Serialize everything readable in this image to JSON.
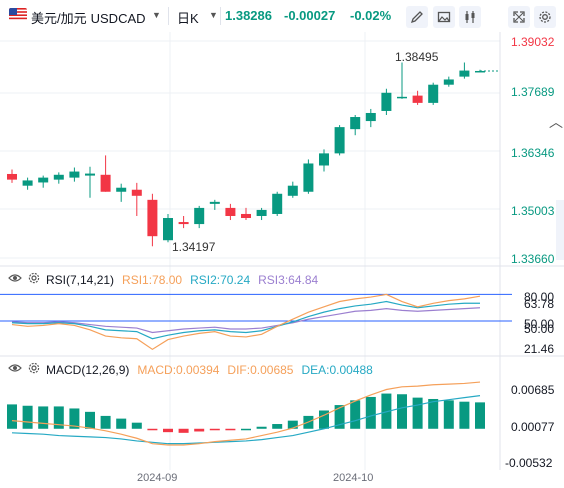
{
  "symbol": {
    "name": "美元/加元",
    "code": "USDCAD",
    "timeframe": "日K"
  },
  "quote": {
    "last": "1.38286",
    "change": "-0.00027",
    "change_pct": "-0.02%"
  },
  "toolbar_icons": [
    "edit-icon",
    "image-icon",
    "chart-style-icon",
    "fullscreen-icon",
    "settings-icon"
  ],
  "colors": {
    "up": "#089981",
    "down": "#f23645",
    "rsi1": "#f5a05a",
    "rsi2": "#26a9c4",
    "rsi3": "#9b7fd0",
    "macd": "#f5a05a",
    "dif": "#f5a05a",
    "dea": "#26a9c4"
  },
  "price_axis": [
    "1.39032",
    "1.37689",
    "1.36346",
    "1.35003",
    "1.33660"
  ],
  "price_labels": {
    "high": "1.38495",
    "low": "1.34197"
  },
  "rsi": {
    "label": "RSI(7,14,21)",
    "rsi1_label": "RSI1:78.00",
    "rsi2_label": "RSI2:70.24",
    "rsi3_label": "RSI3:64.84",
    "axis": [
      "80.00",
      "63.78",
      "50.00",
      "21.46",
      "50.00"
    ]
  },
  "macd": {
    "label": "MACD(12,26,9)",
    "macd_label": "MACD:0.00394",
    "dif_label": "DIF:0.00685",
    "dea_label": "DEA:0.00488",
    "axis": [
      "0.00685",
      "0.00077",
      "-0.00532"
    ]
  },
  "x_axis": [
    "2024-09",
    "2024-10"
  ],
  "chart_data": {
    "type": "candlestick",
    "ylim": [
      1.3366,
      1.39032
    ],
    "candles": [
      {
        "o": 1.3574,
        "h": 1.3585,
        "l": 1.3552,
        "c": 1.356
      },
      {
        "o": 1.3545,
        "h": 1.3565,
        "l": 1.3535,
        "c": 1.3558
      },
      {
        "o": 1.3553,
        "h": 1.357,
        "l": 1.354,
        "c": 1.3565
      },
      {
        "o": 1.356,
        "h": 1.3578,
        "l": 1.355,
        "c": 1.3572
      },
      {
        "o": 1.3565,
        "h": 1.359,
        "l": 1.3555,
        "c": 1.358
      },
      {
        "o": 1.357,
        "h": 1.3592,
        "l": 1.3515,
        "c": 1.3575
      },
      {
        "o": 1.3572,
        "h": 1.362,
        "l": 1.353,
        "c": 1.353
      },
      {
        "o": 1.353,
        "h": 1.355,
        "l": 1.3505,
        "c": 1.354
      },
      {
        "o": 1.3535,
        "h": 1.3552,
        "l": 1.347,
        "c": 1.352
      },
      {
        "o": 1.351,
        "h": 1.3525,
        "l": 1.3395,
        "c": 1.342
      },
      {
        "o": 1.341,
        "h": 1.3475,
        "l": 1.3405,
        "c": 1.3465
      },
      {
        "o": 1.3455,
        "h": 1.347,
        "l": 1.344,
        "c": 1.345
      },
      {
        "o": 1.345,
        "h": 1.3495,
        "l": 1.344,
        "c": 1.349
      },
      {
        "o": 1.35,
        "h": 1.351,
        "l": 1.3485,
        "c": 1.3505
      },
      {
        "o": 1.349,
        "h": 1.35,
        "l": 1.346,
        "c": 1.347
      },
      {
        "o": 1.3475,
        "h": 1.349,
        "l": 1.346,
        "c": 1.3465
      },
      {
        "o": 1.347,
        "h": 1.349,
        "l": 1.346,
        "c": 1.3485
      },
      {
        "o": 1.3475,
        "h": 1.353,
        "l": 1.347,
        "c": 1.3525
      },
      {
        "o": 1.352,
        "h": 1.3555,
        "l": 1.3515,
        "c": 1.3545
      },
      {
        "o": 1.353,
        "h": 1.361,
        "l": 1.3525,
        "c": 1.36
      },
      {
        "o": 1.3595,
        "h": 1.3635,
        "l": 1.358,
        "c": 1.3625
      },
      {
        "o": 1.3625,
        "h": 1.3695,
        "l": 1.362,
        "c": 1.369
      },
      {
        "o": 1.3685,
        "h": 1.372,
        "l": 1.367,
        "c": 1.3715
      },
      {
        "o": 1.3705,
        "h": 1.3735,
        "l": 1.369,
        "c": 1.3725
      },
      {
        "o": 1.373,
        "h": 1.3785,
        "l": 1.372,
        "c": 1.3775
      },
      {
        "o": 1.3765,
        "h": 1.385,
        "l": 1.376,
        "c": 1.3765
      },
      {
        "o": 1.3768,
        "h": 1.378,
        "l": 1.3745,
        "c": 1.375
      },
      {
        "o": 1.375,
        "h": 1.38,
        "l": 1.3745,
        "c": 1.3795
      },
      {
        "o": 1.3795,
        "h": 1.3815,
        "l": 1.379,
        "c": 1.3808
      },
      {
        "o": 1.3815,
        "h": 1.385,
        "l": 1.381,
        "c": 1.383
      },
      {
        "o": 1.3828,
        "h": 1.3832,
        "l": 1.3826,
        "c": 1.3829
      }
    ],
    "rsi_series": {
      "rsi1": [
        46,
        44,
        45,
        47,
        45,
        40,
        33,
        31,
        30,
        18,
        29,
        33,
        36,
        38,
        33,
        32,
        35,
        44,
        52,
        60,
        66,
        72,
        75,
        77,
        80,
        72,
        66,
        70,
        73,
        75,
        78
      ],
      "rsi2": [
        48,
        47,
        47,
        48,
        47,
        44,
        40,
        39,
        38,
        30,
        34,
        37,
        39,
        40,
        38,
        37,
        39,
        44,
        49,
        55,
        60,
        64,
        67,
        69,
        72,
        68,
        65,
        67,
        69,
        70,
        70
      ],
      "rsi3": [
        49,
        48,
        48,
        49,
        48,
        46,
        44,
        43,
        42,
        37,
        39,
        41,
        42,
        43,
        41,
        41,
        42,
        45,
        48,
        52,
        55,
        58,
        61,
        62,
        64,
        62,
        61,
        62,
        63,
        64,
        65
      ]
    },
    "macd_series": {
      "macd": [
        0.0036,
        0.0034,
        0.0033,
        0.0033,
        0.003,
        0.0025,
        0.0019,
        0.0015,
        0.0009,
        -0.0002,
        -0.0005,
        -0.0006,
        -0.0004,
        -0.0002,
        -0.0001,
        0.0,
        0.0003,
        0.0007,
        0.0012,
        0.0019,
        0.0027,
        0.0035,
        0.0042,
        0.0047,
        0.0052,
        0.0051,
        0.0046,
        0.0044,
        0.0042,
        0.004,
        0.0039
      ],
      "dif": [
        0.0012,
        0.001,
        0.0008,
        0.0006,
        0.0004,
        0.0001,
        -0.0003,
        -0.0008,
        -0.0014,
        -0.0022,
        -0.0024,
        -0.0024,
        -0.0022,
        -0.0019,
        -0.0017,
        -0.0015,
        -0.001,
        -0.0005,
        0.0001,
        0.001,
        0.002,
        0.0031,
        0.0041,
        0.005,
        0.0058,
        0.0062,
        0.0063,
        0.0065,
        0.0066,
        0.0067,
        0.0069
      ],
      "dea": [
        -0.0006,
        -0.0007,
        -0.0008,
        -0.001,
        -0.0011,
        -0.0012,
        -0.0013,
        -0.0015,
        -0.0018,
        -0.002,
        -0.0022,
        -0.0022,
        -0.0021,
        -0.002,
        -0.0019,
        -0.0018,
        -0.0016,
        -0.0013,
        -0.001,
        -0.0005,
        0.0,
        0.0006,
        0.0012,
        0.0019,
        0.0025,
        0.0031,
        0.0035,
        0.004,
        0.0043,
        0.0046,
        0.0049
      ]
    }
  }
}
